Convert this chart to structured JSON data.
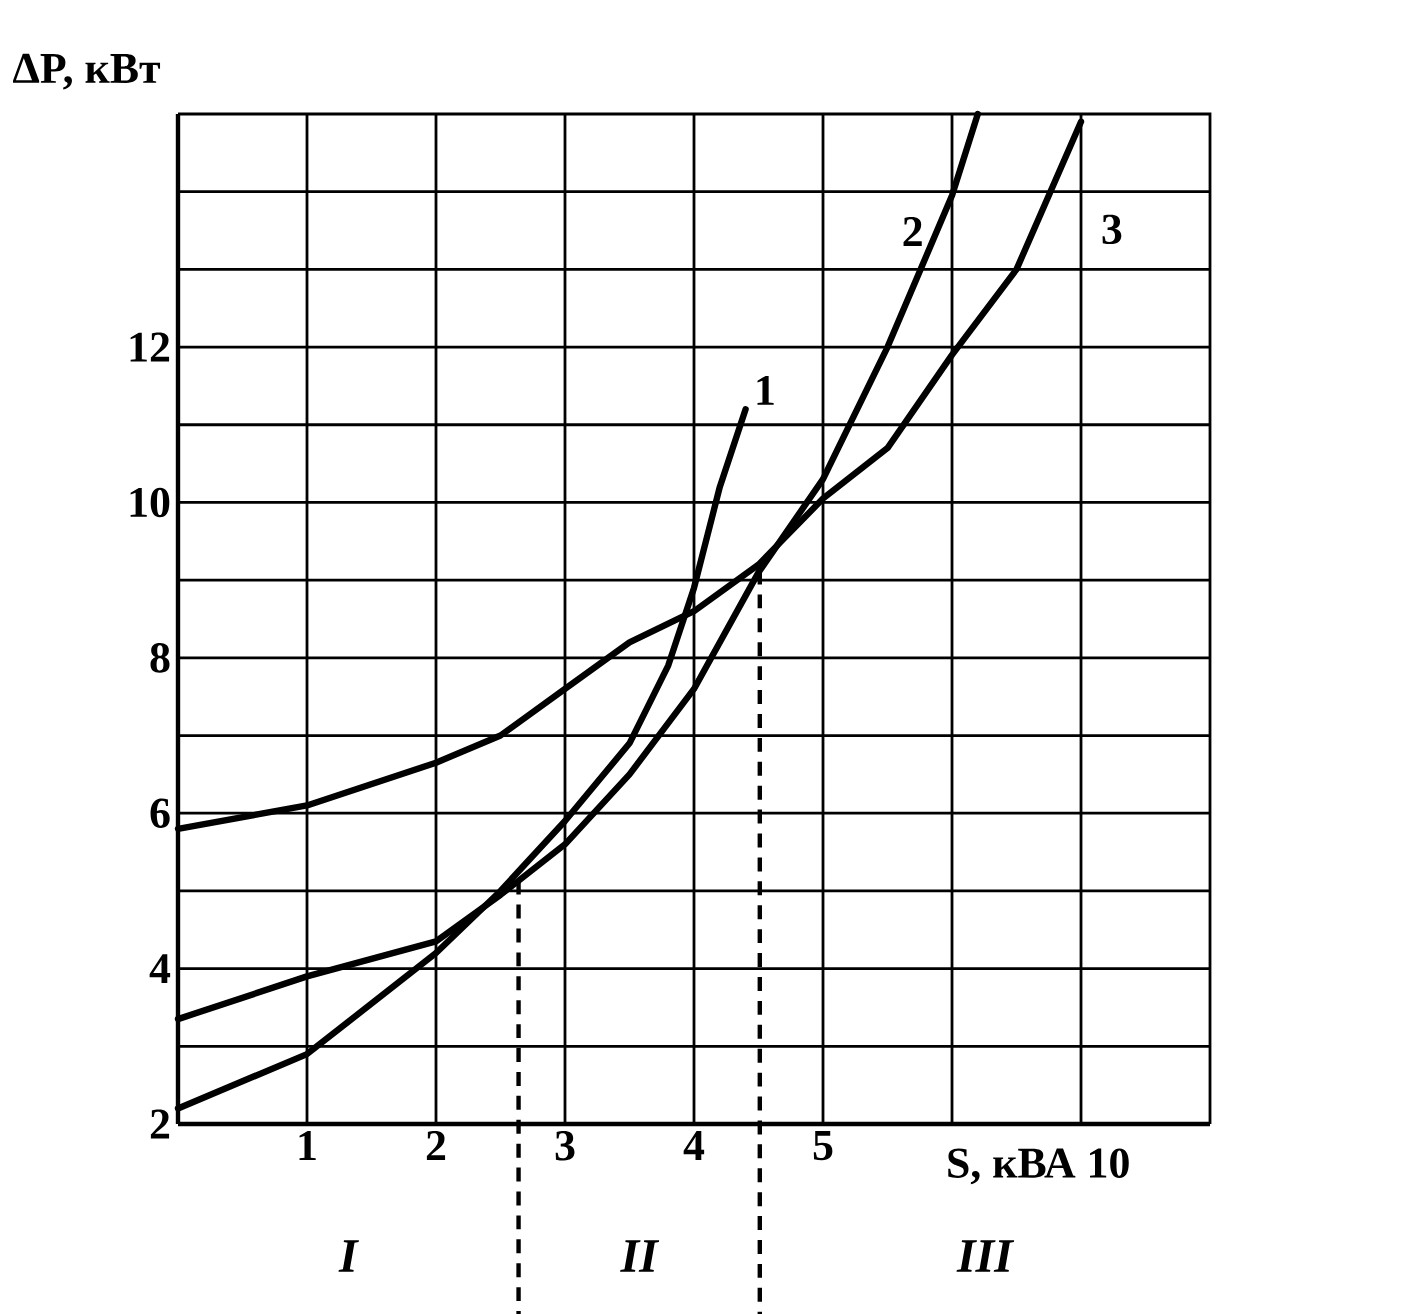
{
  "chart_data": {
    "type": "line",
    "ylabel": "ΔP, кВт",
    "xlabel": "S, кВА 10",
    "xlim": [
      0,
      8
    ],
    "ylim": [
      2,
      15
    ],
    "xticks": [
      1,
      2,
      3,
      4,
      5,
      {
        "value": 6,
        "label": null
      },
      {
        "value": 7,
        "label": null
      }
    ],
    "yticks": [
      2,
      {
        "value": 3,
        "label": null
      },
      4,
      {
        "value": 5,
        "label": null
      },
      6,
      {
        "value": 7,
        "label": null
      },
      8,
      {
        "value": 9,
        "label": null
      },
      10,
      {
        "value": 11,
        "label": null
      },
      12,
      {
        "value": 13,
        "label": null
      },
      {
        "value": 14,
        "label": null
      }
    ],
    "grid": true,
    "marker": "none",
    "line_style": "solid",
    "series": [
      {
        "name": "1",
        "color": "#000000",
        "x": [
          0,
          1,
          2,
          2.5,
          3,
          3.5,
          3.8,
          4,
          4.2,
          4.4
        ],
        "values": [
          2.2,
          2.9,
          4.2,
          5.0,
          5.9,
          6.9,
          7.9,
          8.9,
          10.2,
          11.2
        ]
      },
      {
        "name": "2",
        "color": "#000000",
        "x": [
          0,
          1,
          2,
          2.5,
          3,
          3.5,
          4,
          4.5,
          5,
          5.5,
          6,
          6.2
        ],
        "values": [
          3.35,
          3.9,
          4.35,
          4.95,
          5.6,
          6.5,
          7.6,
          9.1,
          10.3,
          12.0,
          13.95,
          15.0
        ]
      },
      {
        "name": "3",
        "color": "#000000",
        "x": [
          0,
          1,
          2,
          2.5,
          3,
          3.5,
          4,
          4.5,
          5,
          5.5,
          6,
          6.5,
          7
        ],
        "values": [
          5.8,
          6.1,
          6.65,
          7.0,
          7.6,
          8.2,
          8.6,
          9.2,
          10.05,
          10.7,
          11.9,
          13.0,
          14.9
        ]
      }
    ],
    "ref_lines": [
      {
        "axis": "x",
        "value": 2.64,
        "line_style": "dashed",
        "color": "#000000"
      },
      {
        "axis": "x",
        "value": 4.51,
        "line_style": "dashed",
        "color": "#000000"
      }
    ],
    "annotations": [
      "I",
      "II",
      "III"
    ]
  }
}
